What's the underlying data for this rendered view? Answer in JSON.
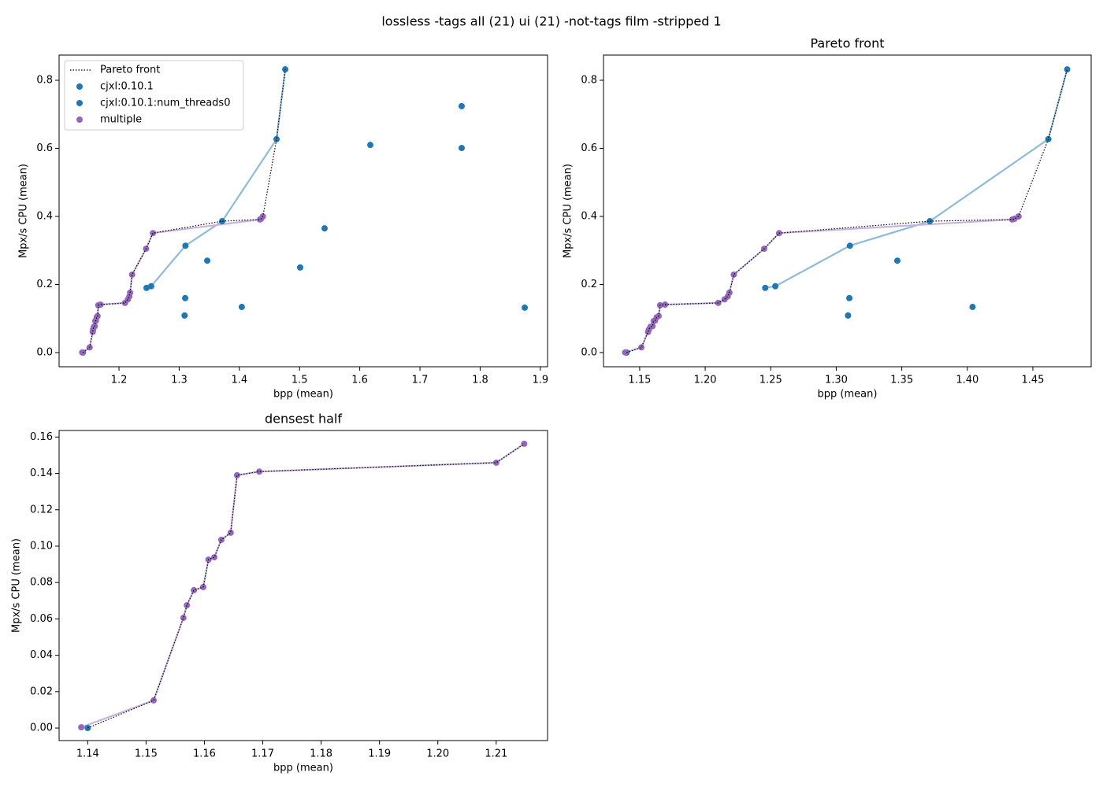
{
  "title": "lossless -tags all (21) ui (21) -not-tags film -stripped 1",
  "chart_data": [
    {
      "type": "scatter",
      "xlabel": "bpp (mean)",
      "ylabel": "Mpx/s CPU (mean)",
      "legend": "upper left",
      "xlim": [
        1.1005,
        1.912
      ],
      "ylim": [
        -0.0416,
        0.874
      ],
      "xticks": [
        1.2,
        1.3,
        1.4,
        1.5,
        1.6,
        1.7,
        1.8,
        1.9
      ],
      "yticks": [
        {
          "value": 0,
          "label": "0.0"
        },
        0.2,
        0.4,
        0.6,
        0.8
      ],
      "series": [
        {
          "name": "Pareto front",
          "color": "#000000",
          "style": "dotted",
          "x": [
            1.14,
            1.1513,
            1.1564,
            1.157,
            1.1582,
            1.1598,
            1.1607,
            1.1617,
            1.1629,
            1.1645,
            1.1656,
            1.1694,
            1.21,
            1.2148,
            1.2172,
            1.2185,
            1.2218,
            1.245,
            1.2564,
            1.3714,
            1.4343,
            1.436,
            1.4391,
            1.4618,
            1.4762
          ],
          "values": [
            0,
            0.0152,
            0.0606,
            0.0675,
            0.0758,
            0.0775,
            0.0926,
            0.0939,
            0.1035,
            0.1074,
            0.139,
            0.141,
            0.1459,
            0.1563,
            0.165,
            0.176,
            0.229,
            0.305,
            0.351,
            0.386,
            0.391,
            0.393,
            0.4,
            0.627,
            0.832
          ]
        },
        {
          "name": "cjxl:0.10.1",
          "color": "#1f77b4",
          "style": "markers",
          "x": [
            1.14,
            1.2458,
            1.2535,
            1.3104,
            1.31,
            1.309,
            1.3466,
            1.3714,
            1.404,
            1.4618,
            1.4762
          ],
          "values": [
            0,
            0.19,
            0.195,
            0.314,
            0.16,
            0.109,
            0.27,
            0.386,
            0.134,
            0.627,
            0.832
          ]
        },
        {
          "name": "cjxl:0.10.1:num_threads0",
          "color": "#1f77b4",
          "style": "markers",
          "x": [
            1.501,
            1.5416,
            1.6175,
            1.7693,
            1.7693,
            1.8741
          ],
          "values": [
            0.25,
            0.365,
            0.61,
            0.724,
            0.601,
            0.132
          ]
        },
        {
          "name": "multiple",
          "color": "#9467bd",
          "style": "markers",
          "x": [
            1.1389,
            1.1513,
            1.1564,
            1.157,
            1.1582,
            1.1598,
            1.1607,
            1.1617,
            1.1629,
            1.1645,
            1.1656,
            1.1694,
            1.21,
            1.2148,
            1.2172,
            1.2185,
            1.2218,
            1.245,
            1.2564,
            1.4343,
            1.436,
            1.4391
          ],
          "values": [
            0.0004,
            0.0152,
            0.0606,
            0.0675,
            0.0758,
            0.0775,
            0.0926,
            0.0939,
            0.1035,
            0.1074,
            0.139,
            0.141,
            0.1459,
            0.1563,
            0.165,
            0.176,
            0.229,
            0.305,
            0.351,
            0.391,
            0.393,
            0.4
          ]
        },
        {
          "color": "#8fbbd9",
          "style": "line",
          "x": [
            1.2458,
            1.2535,
            1.3104,
            1.3714,
            1.4618,
            1.4762
          ],
          "values": [
            0.19,
            0.195,
            0.314,
            0.386,
            0.627,
            0.832
          ]
        },
        {
          "color": "#c9b3de",
          "style": "line",
          "x": [
            1.1389,
            1.1513,
            1.1564,
            1.157,
            1.1582,
            1.1598,
            1.1607,
            1.1617,
            1.1629,
            1.1645,
            1.1656,
            1.1694,
            1.21,
            1.2148,
            1.2172,
            1.2185,
            1.2218,
            1.245,
            1.2564,
            1.4343,
            1.436,
            1.4391
          ],
          "values": [
            0.0004,
            0.0152,
            0.0606,
            0.0675,
            0.0758,
            0.0775,
            0.0926,
            0.0939,
            0.1035,
            0.1074,
            0.139,
            0.141,
            0.1459,
            0.1563,
            0.165,
            0.176,
            0.229,
            0.305,
            0.351,
            0.391,
            0.393,
            0.4
          ]
        }
      ]
    },
    {
      "type": "scatter",
      "title": "Pareto front",
      "xlabel": "bpp (mean)",
      "ylabel": "Mpx/s CPU (mean)",
      "xlim": [
        1.1224,
        1.4945
      ],
      "ylim": [
        -0.0416,
        0.874
      ],
      "xticks": [
        1.15,
        {
          "value": 1.2,
          "label": "1.20"
        },
        1.25,
        {
          "value": 1.3,
          "label": "1.30"
        },
        1.35,
        {
          "value": 1.4,
          "label": "1.40"
        },
        1.45
      ],
      "yticks": [
        {
          "value": 0,
          "label": "0.0"
        },
        0.2,
        0.4,
        0.6,
        0.8
      ],
      "series": [
        {
          "color": "#000000",
          "style": "dotted",
          "x": [
            1.14,
            1.1513,
            1.1564,
            1.157,
            1.1582,
            1.1598,
            1.1607,
            1.1617,
            1.1629,
            1.1645,
            1.1656,
            1.1694,
            1.21,
            1.2148,
            1.2172,
            1.2185,
            1.2218,
            1.245,
            1.2564,
            1.3714,
            1.4343,
            1.436,
            1.4391,
            1.4618,
            1.4762
          ],
          "values": [
            0,
            0.0152,
            0.0606,
            0.0675,
            0.0758,
            0.0775,
            0.0926,
            0.0939,
            0.1035,
            0.1074,
            0.139,
            0.141,
            0.1459,
            0.1563,
            0.165,
            0.176,
            0.229,
            0.305,
            0.351,
            0.386,
            0.391,
            0.393,
            0.4,
            0.627,
            0.832
          ]
        },
        {
          "color": "#1f77b4",
          "style": "markers",
          "x": [
            1.14,
            1.2458,
            1.2535,
            1.3104,
            1.31,
            1.309,
            1.3466,
            1.3714,
            1.404,
            1.4618,
            1.4762
          ],
          "values": [
            0,
            0.19,
            0.195,
            0.314,
            0.16,
            0.109,
            0.27,
            0.386,
            0.134,
            0.627,
            0.832
          ]
        },
        {
          "color": "#9467bd",
          "style": "markers",
          "x": [
            1.1389,
            1.1513,
            1.1564,
            1.157,
            1.1582,
            1.1598,
            1.1607,
            1.1617,
            1.1629,
            1.1645,
            1.1656,
            1.1694,
            1.21,
            1.2148,
            1.2172,
            1.2185,
            1.2218,
            1.245,
            1.2564,
            1.4343,
            1.436,
            1.4391
          ],
          "values": [
            0.0004,
            0.0152,
            0.0606,
            0.0675,
            0.0758,
            0.0775,
            0.0926,
            0.0939,
            0.1035,
            0.1074,
            0.139,
            0.141,
            0.1459,
            0.1563,
            0.165,
            0.176,
            0.229,
            0.305,
            0.351,
            0.391,
            0.393,
            0.4
          ]
        },
        {
          "color": "#8fbbd9",
          "style": "line",
          "x": [
            1.2458,
            1.2535,
            1.3104,
            1.3714,
            1.4618,
            1.4762
          ],
          "values": [
            0.19,
            0.195,
            0.314,
            0.386,
            0.627,
            0.832
          ]
        },
        {
          "color": "#c9b3de",
          "style": "line",
          "x": [
            1.1389,
            1.1513,
            1.1564,
            1.157,
            1.1582,
            1.1598,
            1.1607,
            1.1617,
            1.1629,
            1.1645,
            1.1656,
            1.1694,
            1.21,
            1.2148,
            1.2172,
            1.2185,
            1.2218,
            1.245,
            1.2564,
            1.4343,
            1.436,
            1.4391
          ],
          "values": [
            0.0004,
            0.0152,
            0.0606,
            0.0675,
            0.0758,
            0.0775,
            0.0926,
            0.0939,
            0.1035,
            0.1074,
            0.139,
            0.141,
            0.1459,
            0.1563,
            0.165,
            0.176,
            0.229,
            0.305,
            0.351,
            0.391,
            0.393,
            0.4
          ]
        }
      ]
    },
    {
      "type": "scatter",
      "title": "densest half",
      "xlabel": "bpp (mean)",
      "ylabel": "Mpx/s CPU (mean)",
      "xlim": [
        1.1351,
        1.2188
      ],
      "ylim": [
        -0.0069,
        0.1636
      ],
      "xticks": [
        1.14,
        1.15,
        1.16,
        1.17,
        1.18,
        1.19,
        {
          "value": 1.2,
          "label": "1.20"
        },
        1.21
      ],
      "yticks": [
        {
          "value": 0,
          "label": "0.00"
        },
        0.02,
        0.04,
        0.06,
        0.08,
        {
          "value": 0.1,
          "label": "0.10"
        },
        0.12,
        0.14,
        0.16
      ],
      "series": [
        {
          "color": "#000000",
          "style": "dotted",
          "x": [
            1.14,
            1.1513,
            1.1564,
            1.157,
            1.1582,
            1.1598,
            1.1607,
            1.1617,
            1.1629,
            1.1645,
            1.1656,
            1.1694,
            1.21,
            1.2148
          ],
          "values": [
            0,
            0.0152,
            0.0606,
            0.0675,
            0.0758,
            0.0775,
            0.0926,
            0.0939,
            0.1035,
            0.1074,
            0.139,
            0.141,
            0.1459,
            0.1563
          ]
        },
        {
          "color": "#1f77b4",
          "style": "markers",
          "x": [
            1.14
          ],
          "values": [
            0
          ]
        },
        {
          "color": "#9467bd",
          "style": "markers",
          "x": [
            1.1389,
            1.1513,
            1.1564,
            1.157,
            1.1582,
            1.1598,
            1.1607,
            1.1617,
            1.1629,
            1.1645,
            1.1656,
            1.1694,
            1.21,
            1.2148
          ],
          "values": [
            0.0004,
            0.0152,
            0.0606,
            0.0675,
            0.0758,
            0.0775,
            0.0926,
            0.0939,
            0.1035,
            0.1074,
            0.139,
            0.141,
            0.1459,
            0.1563
          ]
        },
        {
          "color": "#c9b3de",
          "style": "line",
          "x": [
            1.1389,
            1.1513,
            1.1564,
            1.157,
            1.1582,
            1.1598,
            1.1607,
            1.1617,
            1.1629,
            1.1645,
            1.1656,
            1.1694,
            1.21,
            1.2148
          ],
          "values": [
            0.0004,
            0.0152,
            0.0606,
            0.0675,
            0.0758,
            0.0775,
            0.0926,
            0.0939,
            0.1035,
            0.1074,
            0.139,
            0.141,
            0.1459,
            0.1563
          ]
        }
      ]
    }
  ]
}
